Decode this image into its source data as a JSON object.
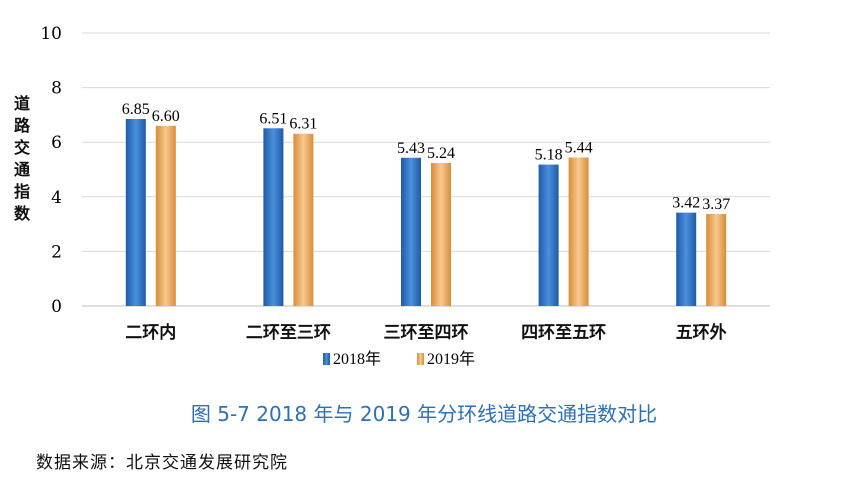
{
  "chart_data": {
    "type": "bar",
    "ylabel": "道路交通指数",
    "ylim": [
      0,
      10
    ],
    "yticks": [
      0,
      2,
      4,
      6,
      8,
      10
    ],
    "categories": [
      "二环内",
      "二环至三环",
      "三环至四环",
      "四环至五环",
      "五环外"
    ],
    "series": [
      {
        "name": "2018年",
        "values": [
          6.85,
          6.51,
          5.43,
          5.18,
          3.42
        ],
        "labels": [
          "6.85",
          "6.51",
          "5.43",
          "5.18",
          "3.42"
        ],
        "color": "#2e75c3"
      },
      {
        "name": "2019年",
        "values": [
          6.6,
          6.31,
          5.24,
          5.44,
          3.37
        ],
        "labels": [
          "6.60",
          "6.31",
          "5.24",
          "5.44",
          "3.37"
        ],
        "color": "#eea85a"
      }
    ],
    "grid": true,
    "legend": "bottom"
  },
  "caption": "图 5-7 2018 年与 2019 年分环线道路交通指数对比",
  "source": "数据来源：北京交通发展研究院",
  "colors": {
    "caption": "#2f6fb6",
    "grid": "#d9d9d9"
  }
}
